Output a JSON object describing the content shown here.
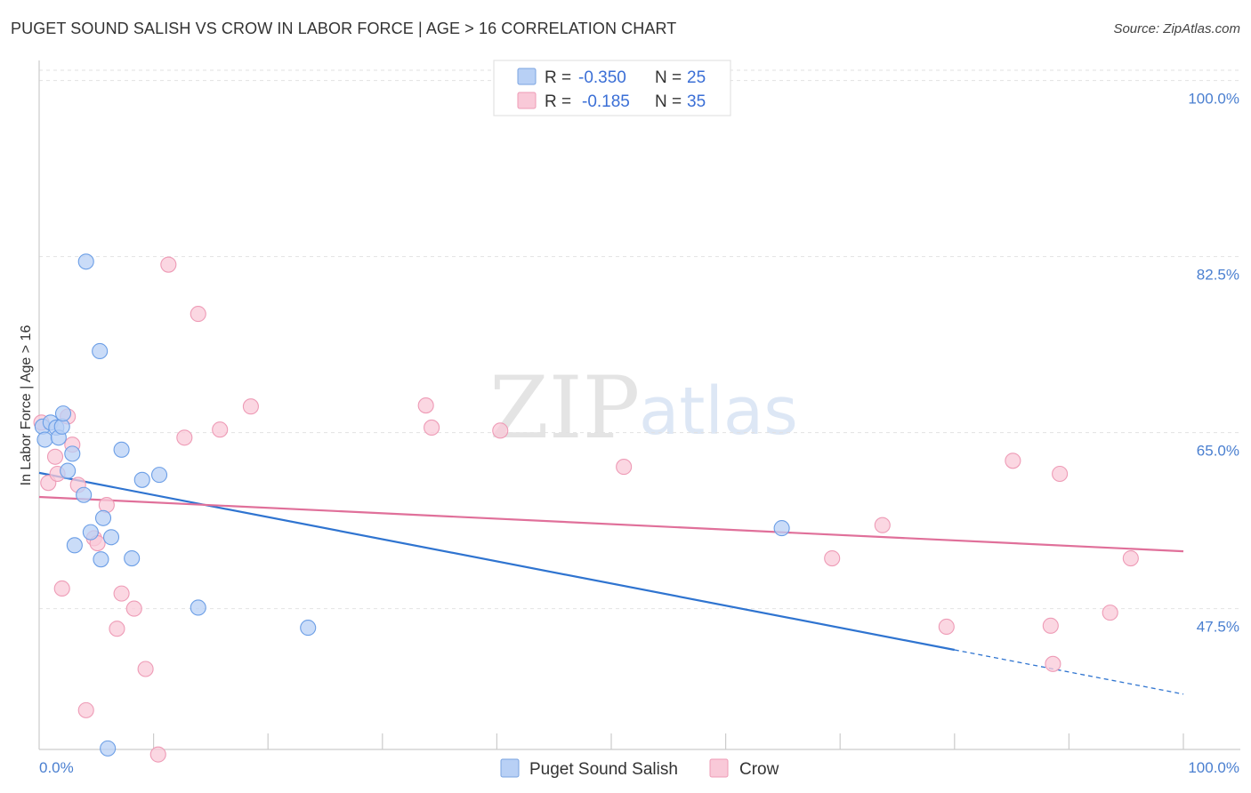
{
  "header": {
    "title": "PUGET SOUND SALISH VS CROW IN LABOR FORCE | AGE > 16 CORRELATION CHART",
    "source": "Source: ZipAtlas.com"
  },
  "watermark": {
    "zip": "ZIP",
    "atlas": "atlas"
  },
  "legend": {
    "r_label": "R =",
    "n_label": "N =",
    "rows": [
      {
        "r": "-0.350",
        "n": "25",
        "fill": "#b8d0f5",
        "stroke": "#7aa3e0"
      },
      {
        "r": "-0.185",
        "n": "35",
        "fill": "#f9c9d8",
        "stroke": "#ee9bb6"
      }
    ]
  },
  "chart_data": {
    "type": "scatter",
    "title": "PUGET SOUND SALISH VS CROW IN LABOR FORCE | AGE > 16 CORRELATION CHART",
    "xlabel": "",
    "ylabel": "In Labor Force | Age > 16",
    "xlim": [
      0,
      100
    ],
    "ylim": [
      33.5,
      102
    ],
    "x_tick_labels": [
      "0.0%",
      "100.0%"
    ],
    "y_ticks": [
      47.5,
      65.0,
      82.5,
      100.0
    ],
    "y_tick_labels": [
      "47.5%",
      "65.0%",
      "82.5%",
      "100.0%"
    ],
    "grid": true,
    "series": [
      {
        "name": "Puget Sound Salish",
        "color": "#6b9ee6",
        "fill": "#b8d0f5",
        "line_color": "#2f74d0",
        "trend": {
          "x0": 0,
          "y0": 61.0,
          "x1": 100,
          "y1": 39.0,
          "solid_until": 80
        },
        "points": [
          [
            0.3,
            65.6
          ],
          [
            0.5,
            64.3
          ],
          [
            1.0,
            66.0
          ],
          [
            1.5,
            65.5
          ],
          [
            1.7,
            64.5
          ],
          [
            2.0,
            65.6
          ],
          [
            2.1,
            66.9
          ],
          [
            2.5,
            61.2
          ],
          [
            2.9,
            62.9
          ],
          [
            3.1,
            53.8
          ],
          [
            3.9,
            58.8
          ],
          [
            4.1,
            82.0
          ],
          [
            4.5,
            55.1
          ],
          [
            5.3,
            73.1
          ],
          [
            5.4,
            52.4
          ],
          [
            5.6,
            56.5
          ],
          [
            6.3,
            54.6
          ],
          [
            7.2,
            63.3
          ],
          [
            8.1,
            52.5
          ],
          [
            9.0,
            60.3
          ],
          [
            10.5,
            60.8
          ],
          [
            13.9,
            47.6
          ],
          [
            23.5,
            45.6
          ],
          [
            64.9,
            55.5
          ],
          [
            6.0,
            33.6
          ]
        ]
      },
      {
        "name": "Crow",
        "color": "#ee9bb6",
        "fill": "#f9c9d8",
        "line_color": "#e0709a",
        "trend": {
          "x0": 0,
          "y0": 58.6,
          "x1": 100,
          "y1": 53.2,
          "solid_until": 100
        },
        "points": [
          [
            0.2,
            66.0
          ],
          [
            0.8,
            60.0
          ],
          [
            1.4,
            62.6
          ],
          [
            1.6,
            60.9
          ],
          [
            2.0,
            49.5
          ],
          [
            2.5,
            66.6
          ],
          [
            2.9,
            63.8
          ],
          [
            3.4,
            59.8
          ],
          [
            4.1,
            37.4
          ],
          [
            4.8,
            54.5
          ],
          [
            5.1,
            54.0
          ],
          [
            5.9,
            57.8
          ],
          [
            6.8,
            45.5
          ],
          [
            7.2,
            49.0
          ],
          [
            8.3,
            47.5
          ],
          [
            9.3,
            41.5
          ],
          [
            10.4,
            33.0
          ],
          [
            11.3,
            81.7
          ],
          [
            12.7,
            64.5
          ],
          [
            13.9,
            76.8
          ],
          [
            15.8,
            65.3
          ],
          [
            18.5,
            67.6
          ],
          [
            33.8,
            67.7
          ],
          [
            34.3,
            65.5
          ],
          [
            40.3,
            65.2
          ],
          [
            51.1,
            61.6
          ],
          [
            69.3,
            52.5
          ],
          [
            73.7,
            55.8
          ],
          [
            79.3,
            45.7
          ],
          [
            85.1,
            62.2
          ],
          [
            88.4,
            45.8
          ],
          [
            88.6,
            42.0
          ],
          [
            89.2,
            60.9
          ],
          [
            93.6,
            47.1
          ],
          [
            95.4,
            52.5
          ]
        ]
      }
    ]
  }
}
